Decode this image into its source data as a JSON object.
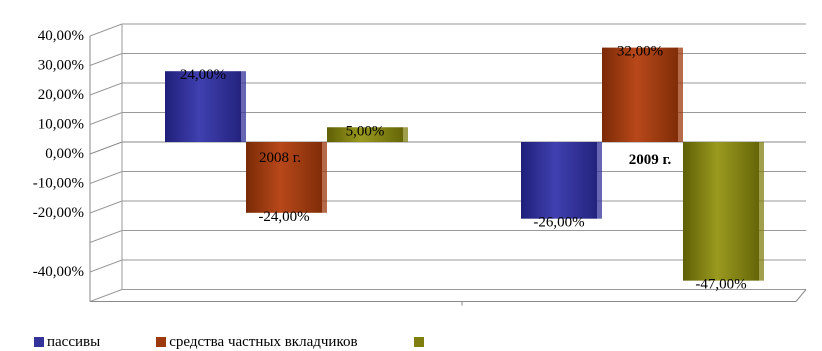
{
  "chart_data": {
    "type": "bar",
    "title": "",
    "xlabel": "",
    "ylabel": "",
    "categories": [
      "2008 г.",
      "2009 г."
    ],
    "series": [
      {
        "name": "пассивы",
        "values": [
          24,
          -26
        ],
        "labels": [
          "24,00%",
          "-26,00%"
        ],
        "color": "#33339a"
      },
      {
        "name": "средства частных вкладчиков",
        "values": [
          -24,
          32
        ],
        "labels": [
          "-24,00%",
          "32,00%"
        ],
        "color": "#9c3a0e"
      },
      {
        "name": "",
        "values": [
          5,
          -47
        ],
        "labels": [
          "5,00%",
          "-47,00%"
        ],
        "color": "#7f7f10"
      }
    ],
    "ylim": [
      -50,
      40
    ],
    "yticks": [
      {
        "value": 40,
        "label": "40,00%"
      },
      {
        "value": 30,
        "label": "30,00%"
      },
      {
        "value": 20,
        "label": "20,00%"
      },
      {
        "value": 10,
        "label": "10,00%"
      },
      {
        "value": 0,
        "label": "0,00%"
      },
      {
        "value": -10,
        "label": "-10,00%"
      },
      {
        "value": -20,
        "label": "-20,00%"
      },
      {
        "value": -30,
        "label": ""
      },
      {
        "value": -40,
        "label": "-40,00%"
      },
      {
        "value": -50,
        "label": ""
      }
    ],
    "grid": true,
    "legend_position": "bottom"
  }
}
